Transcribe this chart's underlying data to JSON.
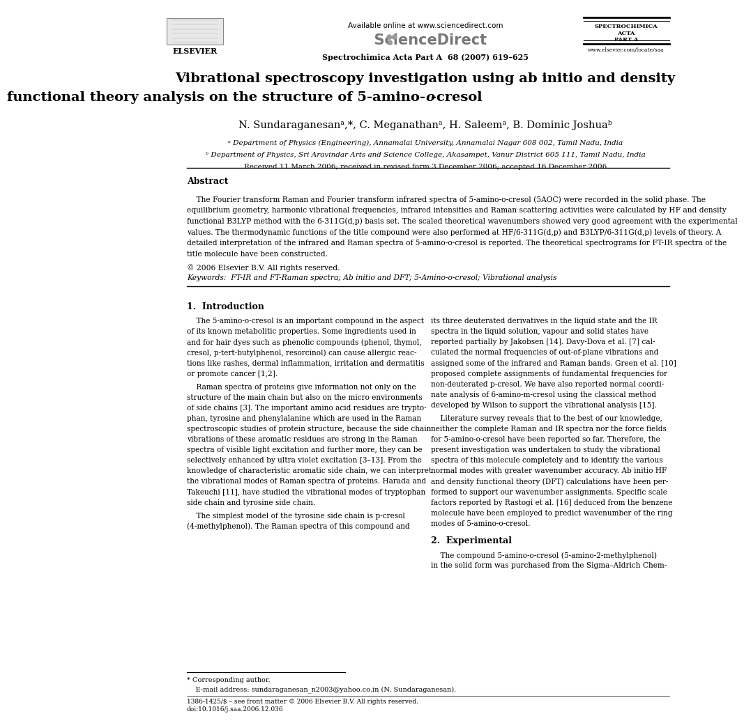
{
  "page_width": 9.92,
  "page_height": 13.23,
  "bg_color": "#ffffff",
  "header": {
    "available_online": "Available online at www.sciencedirect.com",
    "journal_name": "Spectrochimica Acta Part A  68 (2007) 619–625",
    "journal_abbr_line1": "SPECTROCHIMICA",
    "journal_abbr_line2": "ACTA",
    "journal_abbr_line3": "PART A",
    "journal_url": "www.elsevier.com/locate/saa"
  },
  "title_line1": "Vibrational spectroscopy investigation using ab initio and density",
  "title_line2a": "functional theory analysis on the structure of 5-amino-",
  "title_line2b": "o",
  "title_line2c": "-cresol",
  "authors": "N. Sundaraganesanᵃ,*, C. Meganathanᵃ, H. Saleemᵃ, B. Dominic Joshuaᵇ",
  "affil_a": "ᵃ Department of Physics (Engineering), Annamalai University, Annamalai Nagar 608 002, Tamil Nadu, India",
  "affil_b": "ᵇ Department of Physics, Sri Aravindar Arts and Science College, Akasampet, Vanur District 605 111, Tamil Nadu, India",
  "received": "Received 11 March 2006; received in revised form 3 December 2006; accepted 16 December 2006",
  "abstract_title": "Abstract",
  "abstract_text": "    The Fourier transform Raman and Fourier transform infrared spectra of 5-amino-o-cresol (5AOC) were recorded in the solid phase. The\nequilibrium geometry, harmonic vibrational frequencies, infrared intensities and Raman scattering activities were calculated by HF and density\nfunctional B3LYP method with the 6-311G(d,p) basis set. The scaled theoretical wavenumbers showed very good agreement with the experimental\nvalues. The thermodynamic functions of the title compound were also performed at HF/6-311G(d,p) and B3LYP/6-311G(d,p) levels of theory. A\ndetailed interpretation of the infrared and Raman spectra of 5-amino-o-cresol is reported. The theoretical spectrograms for FT-IR spectra of the\ntitle molecule have been constructed.",
  "copyright": "© 2006 Elsevier B.V. All rights reserved.",
  "keywords": "Keywords:  FT-IR and FT-Raman spectra; Ab initio and DFT; 5-Amino-o-cresol; Vibrational analysis",
  "section1_title": "1.  Introduction",
  "intro_col1_p1": "    The 5-amino-o-cresol is an important compound in the aspect\nof its known metabolitic properties. Some ingredients used in\nand for hair dyes such as phenolic compounds (phenol, thymol,\ncresol, p-tert-butylphenol, resorcinol) can cause allergic reac-\ntions like rashes, dermal inflammation, irritation and dermatitis\nor promote cancer [1,2].",
  "intro_col1_p2": "    Raman spectra of proteins give information not only on the\nstructure of the main chain but also on the micro environments\nof side chains [3]. The important amino acid residues are trypto-\nphan, tyrosine and phenylalanine which are used in the Raman\nspectroscopic studies of protein structure, because the side chain\nvibrations of these aromatic residues are strong in the Raman\nspectra of visible light excitation and further more, they can be\nselectively enhanced by ultra violet excitation [3–13]. From the\nknowledge of characteristic aromatic side chain, we can interpret\nthe vibrational modes of Raman spectra of proteins. Harada and\nTakeuchi [11], have studied the vibrational modes of tryptophan\nside chain and tyrosine side chain.",
  "intro_col1_p3": "    The simplest model of the tyrosine side chain is p-cresol\n(4-methylphenol). The Raman spectra of this compound and",
  "intro_col2_p1": "its three deuterated derivatives in the liquid state and the IR\nspectra in the liquid solution, vapour and solid states have\nreported partially by Jakobsen [14]. Davy-Dova et al. [7] cal-\nculated the normal frequencies of out-of-plane vibrations and\nassigned some of the infrared and Raman bands. Green et al. [10]\nproposed complete assignments of fundamental frequencies for\nnon-deuterated p-cresol. We have also reported normal coordi-\nnate analysis of 6-amino-m-cresol using the classical method\ndeveloped by Wilson to support the vibrational analysis [15].",
  "intro_col2_p2": "    Literature survey reveals that to the best of our knowledge,\nneither the complete Raman and IR spectra nor the force fields\nfor 5-amino-o-cresol have been reported so far. Therefore, the\npresent investigation was undertaken to study the vibrational\nspectra of this molecule completely and to identify the various\nnormal modes with greater wavenumber accuracy. Ab initio HF\nand density functional theory (DFT) calculations have been per-\nformed to support our wavenumber assignments. Specific scale\nfactors reported by Rastogi et al. [16] deduced from the benzene\nmolecule have been employed to predict wavenumber of the ring\nmodes of 5-amino-o-cresol.",
  "section2_title": "2.  Experimental",
  "exp_col2_start": "    The compound 5-amino-o-cresol (5-amino-2-methylphenol)\nin the solid form was purchased from the Sigma–Aldrich Chem-",
  "footnote_star": "* Corresponding author.",
  "footnote_email": "    E-mail address: sundaraganesan_n2003@yahoo.co.in (N. Sundaraganesan).",
  "footer_issn": "1386-1425/$ – see front matter © 2006 Elsevier B.V. All rights reserved.",
  "footer_doi": "doi:10.1016/j.saa.2006.12.036"
}
